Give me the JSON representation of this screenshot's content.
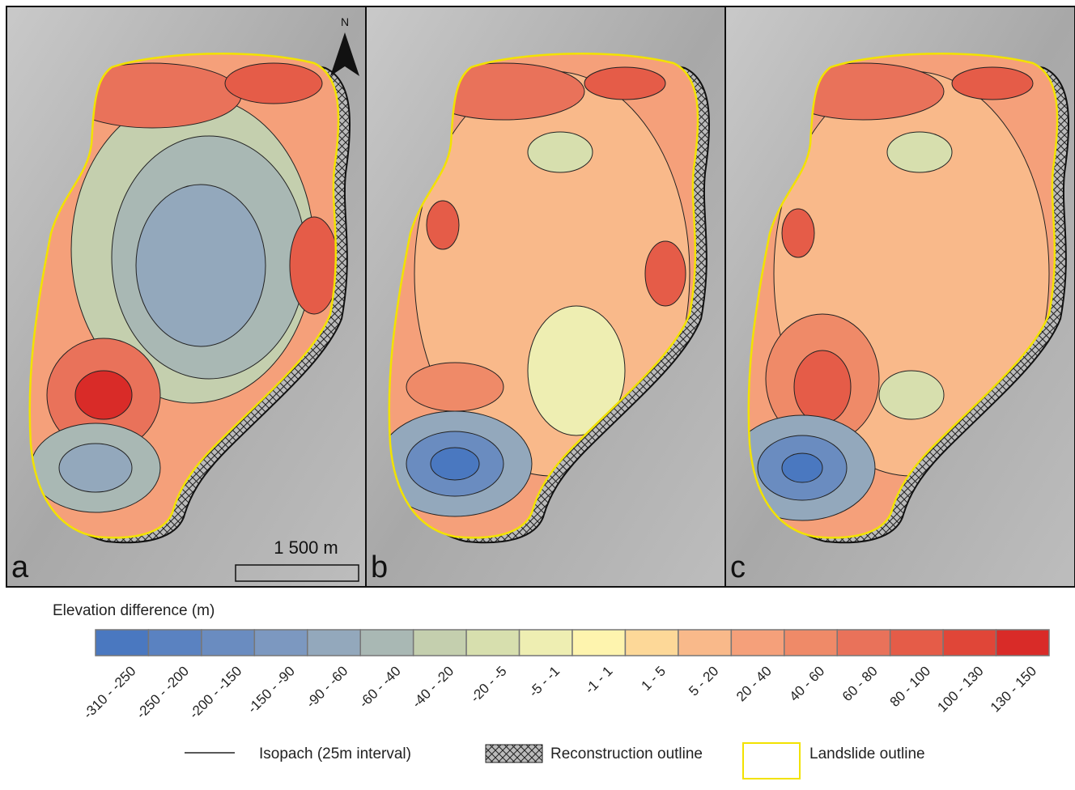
{
  "panels": [
    {
      "label": "a"
    },
    {
      "label": "b"
    },
    {
      "label": "c"
    }
  ],
  "north_arrow": "N",
  "scale_bar": "1 500 m",
  "legend": {
    "title": "Elevation difference (m)",
    "classes": [
      {
        "label": "-310 - -250",
        "color": "#4a78c0"
      },
      {
        "label": "-250 - -200",
        "color": "#5a82c1"
      },
      {
        "label": "-200 - -150",
        "color": "#6a8cc0"
      },
      {
        "label": "-150 - -90",
        "color": "#7c98c0"
      },
      {
        "label": "-90 - -60",
        "color": "#93a8bc"
      },
      {
        "label": "-60 - -40",
        "color": "#a9b8b4"
      },
      {
        "label": "-40 - -20",
        "color": "#c4cfae"
      },
      {
        "label": "-20 - -5",
        "color": "#d7dfae"
      },
      {
        "label": "-5 - -1",
        "color": "#eeeeb2"
      },
      {
        "label": "-1 - 1",
        "color": "#fef4ae"
      },
      {
        "label": "1 - 5",
        "color": "#fdd898"
      },
      {
        "label": "5 - 20",
        "color": "#f9b98a"
      },
      {
        "label": "20 - 40",
        "color": "#f5a07a"
      },
      {
        "label": "40 - 60",
        "color": "#ef8a68"
      },
      {
        "label": "60 - 80",
        "color": "#e9725a"
      },
      {
        "label": "80 - 100",
        "color": "#e55c48"
      },
      {
        "label": "100 - 130",
        "color": "#e04638"
      },
      {
        "label": "130 - 150",
        "color": "#d92b28"
      }
    ],
    "items": [
      "Isopach (25m interval)",
      "Reconstruction outline",
      "Landslide outline"
    ]
  }
}
